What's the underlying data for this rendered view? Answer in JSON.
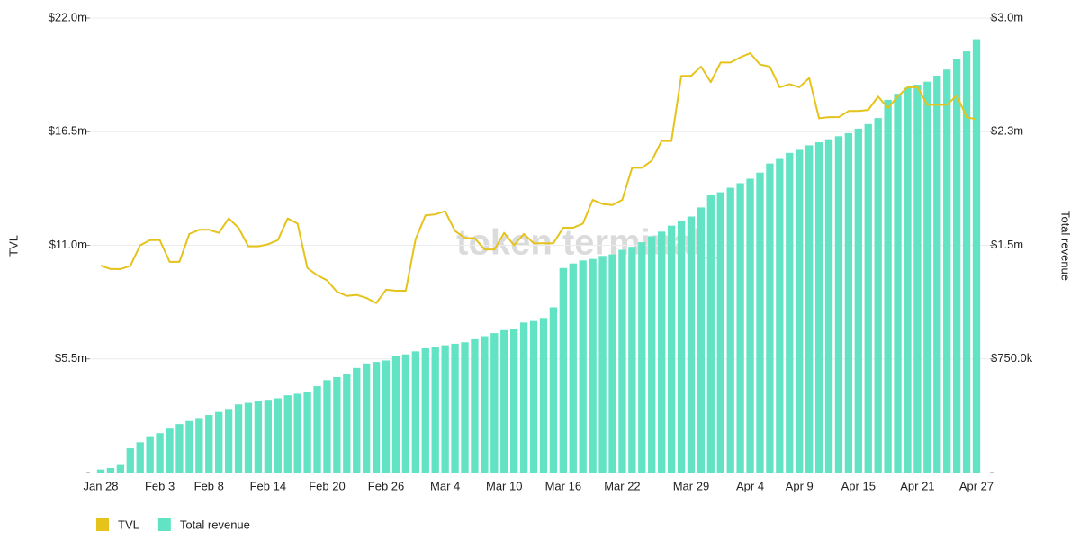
{
  "chart_data": {
    "type": "bar",
    "watermark": "token terminal_",
    "y_label": "TVL",
    "y2_label": "Total revenue",
    "categories": [
      "Jan 28",
      null,
      null,
      null,
      null,
      null,
      "Feb 3",
      null,
      null,
      null,
      null,
      "Feb 8",
      null,
      null,
      null,
      null,
      null,
      "Feb 14",
      null,
      null,
      null,
      null,
      null,
      "Feb 20",
      null,
      null,
      null,
      null,
      null,
      "Feb 26",
      null,
      null,
      null,
      null,
      null,
      "Mar 4",
      null,
      null,
      null,
      null,
      null,
      "Mar 10",
      null,
      null,
      null,
      null,
      null,
      "Mar 16",
      null,
      null,
      null,
      null,
      null,
      "Mar 22",
      null,
      null,
      null,
      null,
      null,
      null,
      "Mar 29",
      null,
      null,
      null,
      null,
      null,
      "Apr 4",
      null,
      null,
      null,
      null,
      "Apr 9",
      null,
      null,
      null,
      null,
      null,
      "Apr 15",
      null,
      null,
      null,
      null,
      null,
      "Apr 21",
      null,
      null,
      null,
      null,
      null,
      "Apr 27"
    ],
    "series": [
      {
        "name": "TVL",
        "type": "line",
        "axis": "y",
        "color": "#e5c31b",
        "values": [
          10020000,
          9850000,
          9850000,
          10000000,
          11000000,
          11250000,
          11250000,
          10200000,
          10200000,
          11550000,
          11750000,
          11750000,
          11600000,
          12300000,
          11850000,
          10950000,
          10950000,
          11050000,
          11250000,
          12300000,
          12050000,
          9900000,
          9550000,
          9300000,
          8750000,
          8550000,
          8600000,
          8450000,
          8200000,
          8850000,
          8800000,
          8800000,
          11300000,
          12450000,
          12500000,
          12650000,
          11700000,
          11350000,
          11350000,
          10800000,
          10800000,
          11600000,
          11000000,
          11550000,
          11100000,
          11100000,
          11100000,
          11850000,
          11850000,
          12050000,
          13200000,
          13000000,
          12950000,
          13200000,
          14750000,
          14750000,
          15100000,
          16050000,
          16050000,
          19200000,
          19200000,
          19650000,
          18900000,
          19850000,
          19850000,
          20100000,
          20300000,
          19750000,
          19650000,
          18650000,
          18800000,
          18650000,
          19100000,
          17150000,
          17200000,
          17200000,
          17500000,
          17500000,
          17550000,
          18200000,
          17650000,
          18200000,
          18650000,
          18650000,
          17800000,
          17800000,
          17800000,
          18250000,
          17200000,
          17100000
        ]
      },
      {
        "name": "Total revenue",
        "type": "bar",
        "axis": "y2",
        "color": "#62e3c3",
        "values": [
          20000,
          30000,
          50000,
          160000,
          200000,
          240000,
          260000,
          290000,
          320000,
          340000,
          360000,
          380000,
          400000,
          420000,
          450000,
          460000,
          470000,
          480000,
          490000,
          510000,
          520000,
          530000,
          570000,
          610000,
          630000,
          650000,
          690000,
          720000,
          730000,
          740000,
          770000,
          780000,
          800000,
          820000,
          830000,
          840000,
          850000,
          860000,
          880000,
          900000,
          920000,
          940000,
          950000,
          990000,
          1000000,
          1020000,
          1090000,
          1350000,
          1380000,
          1400000,
          1410000,
          1430000,
          1440000,
          1470000,
          1490000,
          1520000,
          1560000,
          1590000,
          1630000,
          1660000,
          1690000,
          1750000,
          1830000,
          1850000,
          1880000,
          1910000,
          1940000,
          1980000,
          2040000,
          2070000,
          2110000,
          2130000,
          2160000,
          2180000,
          2200000,
          2220000,
          2240000,
          2270000,
          2300000,
          2340000,
          2460000,
          2500000,
          2540000,
          2560000,
          2580000,
          2620000,
          2660000,
          2730000,
          2780000,
          2860000
        ]
      }
    ],
    "ylim": [
      0,
      22000000
    ],
    "yticks": [
      {
        "value": 5500000,
        "label": "$5.5m"
      },
      {
        "value": 11000000,
        "label": "$11.0m"
      },
      {
        "value": 16500000,
        "label": "$16.5m"
      },
      {
        "value": 22000000,
        "label": "$22.0m"
      }
    ],
    "y2lim": [
      0,
      3000000
    ],
    "y2ticks": [
      {
        "value": 750000,
        "label": "$750.0k"
      },
      {
        "value": 1500000,
        "label": "$1.5m"
      },
      {
        "value": 2250000,
        "label": "$2.3m"
      },
      {
        "value": 3000000,
        "label": "$3.0m"
      }
    ],
    "grid": true,
    "legend": "bottom-left"
  }
}
